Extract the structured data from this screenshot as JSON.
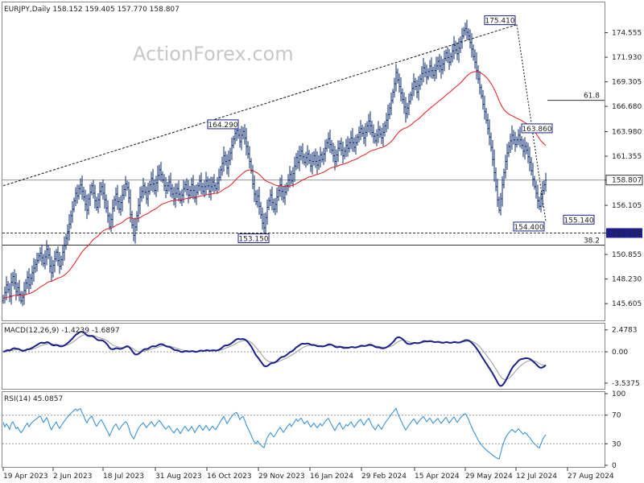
{
  "chart_data": {
    "type": "candlestick",
    "symbol_line": "EURJPY,Daily",
    "ohlc_readout": "158.152 159.405 157.770 158.807",
    "watermark": "ActionForex.com",
    "price_axis": {
      "ylim": [
        143.9,
        177.7
      ],
      "ticks": [
        "174.555",
        "171.930",
        "169.305",
        "166.680",
        "163.980",
        "161.355",
        "158.807",
        "156.105",
        "153.150",
        "150.855",
        "148.230",
        "145.605"
      ],
      "tick_values": [
        174.555,
        171.93,
        169.305,
        166.68,
        163.98,
        161.355,
        158.807,
        156.105,
        153.15,
        150.855,
        148.23,
        145.605
      ],
      "last_price": "158.807",
      "support_line_label": "153.150"
    },
    "x_axis": {
      "labels": [
        "19 Apr 2023",
        "2 Jun 2023",
        "18 Jul 2023",
        "31 Aug 2023",
        "16 Oct 2023",
        "29 Nov 2023",
        "16 Jan 2024",
        "29 Feb 2024",
        "15 Apr 2024",
        "29 May 2024",
        "12 Jul 2024",
        "27 Aug 2024"
      ],
      "bars": 360
    },
    "annotations": [
      {
        "text": "175.410",
        "bar": 319,
        "price": 175.41,
        "pos": "left"
      },
      {
        "text": "164.290",
        "bar": 147,
        "price": 164.29,
        "pos": "left"
      },
      {
        "text": "163.860",
        "bar": 342,
        "price": 163.86,
        "pos": "left"
      },
      {
        "text": "154.400",
        "bar": 337,
        "price": 154.4,
        "pos": "left"
      },
      {
        "text": "155.140",
        "bar": 368,
        "price": 155.14,
        "pos": "left"
      },
      {
        "text": "153.150",
        "bar": 166,
        "price": 153.15,
        "pos": "left"
      }
    ],
    "fib_levels": [
      {
        "text": "61.8",
        "price": 167.33
      },
      {
        "text": "38.2",
        "price": 151.86
      }
    ],
    "trendline": {
      "from": [
        0,
        158.2
      ],
      "to": [
        319,
        175.41
      ]
    },
    "horizontal_lines": [
      158.807,
      153.15,
      151.86,
      167.33
    ],
    "closes": [
      146.2,
      146.8,
      147.6,
      147.1,
      146.4,
      147.9,
      148.5,
      147.8,
      146.9,
      147.3,
      146.6,
      145.9,
      146.3,
      147.0,
      147.8,
      148.4,
      147.6,
      148.3,
      148.9,
      149.4,
      149.8,
      150.2,
      150.7,
      151.0,
      150.5,
      149.9,
      150.6,
      151.4,
      150.8,
      149.6,
      148.9,
      149.7,
      150.4,
      151.1,
      150.2,
      149.6,
      150.3,
      151.1,
      151.8,
      152.6,
      153.3,
      154.1,
      155.0,
      155.7,
      156.6,
      157.4,
      157.1,
      157.9,
      158.3,
      157.6,
      157.0,
      156.2,
      155.6,
      156.8,
      157.5,
      158.2,
      157.4,
      156.6,
      155.9,
      156.7,
      157.6,
      158.1,
      157.4,
      156.7,
      155.8,
      155.0,
      153.8,
      154.6,
      155.8,
      156.7,
      157.3,
      156.5,
      155.7,
      156.4,
      157.2,
      157.8,
      158.4,
      158.0,
      156.9,
      155.1,
      154.0,
      152.9,
      153.8,
      155.0,
      156.1,
      157.0,
      157.6,
      158.2,
      157.5,
      156.8,
      157.6,
      158.3,
      159.0,
      158.4,
      157.7,
      158.5,
      159.3,
      159.9,
      159.4,
      158.8,
      158.2,
      157.7,
      158.2,
      158.6,
      157.9,
      157.3,
      156.8,
      157.4,
      157.9,
      157.3,
      156.6,
      157.2,
      157.9,
      158.3,
      157.8,
      157.2,
      157.7,
      158.3,
      157.7,
      156.9,
      157.5,
      158.2,
      158.7,
      158.1,
      157.6,
      158.1,
      158.7,
      158.2,
      157.6,
      158.1,
      158.6,
      158.2,
      157.9,
      158.5,
      159.1,
      159.9,
      160.6,
      161.4,
      160.8,
      160.1,
      160.9,
      161.7,
      162.5,
      163.2,
      163.8,
      164.1,
      163.6,
      162.9,
      163.6,
      164.0,
      163.3,
      162.4,
      161.6,
      160.8,
      159.8,
      158.4,
      157.3,
      156.5,
      157.1,
      156.0,
      155.1,
      154.2,
      153.7,
      154.8,
      155.9,
      156.6,
      157.2,
      156.4,
      155.7,
      156.2,
      157.0,
      157.7,
      158.3,
      157.6,
      156.9,
      157.5,
      158.2,
      158.8,
      159.4,
      158.7,
      159.5,
      160.3,
      161.2,
      160.7,
      161.4,
      161.9,
      161.3,
      160.7,
      161.2,
      161.6,
      160.9,
      160.3,
      160.8,
      161.4,
      160.8,
      160.4,
      160.9,
      161.5,
      161.0,
      161.6,
      162.2,
      162.8,
      163.2,
      162.6,
      162.0,
      161.4,
      160.8,
      161.5,
      162.2,
      162.7,
      162.0,
      161.4,
      161.9,
      162.5,
      162.2,
      162.8,
      163.3,
      162.8,
      162.3,
      162.8,
      163.4,
      163.9,
      164.3,
      163.8,
      163.3,
      163.9,
      164.6,
      165.1,
      164.6,
      163.9,
      163.5,
      163.0,
      163.6,
      164.2,
      163.7,
      163.3,
      163.9,
      164.6,
      165.2,
      165.8,
      166.5,
      167.3,
      168.2,
      169.1,
      170.3,
      169.5,
      168.8,
      168.1,
      167.4,
      166.6,
      165.9,
      166.5,
      167.2,
      167.9,
      168.6,
      169.3,
      168.8,
      168.2,
      168.9,
      169.6,
      170.2,
      170.8,
      170.3,
      169.8,
      170.4,
      171.0,
      170.5,
      170.0,
      170.5,
      171.0,
      171.5,
      171.0,
      170.6,
      171.2,
      171.8,
      172.4,
      171.9,
      171.4,
      172.0,
      172.6,
      173.2,
      172.7,
      172.3,
      172.9,
      173.6,
      174.2,
      174.8,
      175.0,
      174.6,
      174.2,
      173.5,
      172.8,
      172.0,
      171.4,
      170.5,
      169.6,
      168.7,
      167.8,
      166.9,
      166.1,
      165.2,
      164.3,
      163.4,
      162.3,
      161.0,
      159.6,
      158.1,
      156.7,
      155.6,
      156.8,
      158.3,
      159.6,
      160.8,
      161.7,
      162.4,
      163.0,
      163.6,
      163.1,
      162.6,
      163.1,
      163.6,
      163.1,
      162.5,
      161.9,
      162.4,
      162.0,
      161.3,
      160.7,
      159.8,
      158.9,
      158.1,
      157.4,
      156.6,
      156.0,
      156.8,
      157.7,
      158.3,
      158.8
    ]
  },
  "macd_panel": {
    "title": "MACD(12,26,9) -1.4239 -1.6897",
    "ticks": [
      "2.4783",
      "0.00",
      "-3.5375"
    ],
    "tick_values": [
      2.4783,
      0.0,
      -3.5375
    ],
    "ylim": [
      -4.0,
      3.0
    ]
  },
  "rsi_panel": {
    "title": "RSI(14) 45.0857",
    "ticks": [
      "100",
      "70",
      "30",
      "0"
    ],
    "tick_values": [
      100,
      70,
      30,
      0
    ],
    "ylim": [
      0,
      100
    ]
  },
  "colors": {
    "candle": "#0a2a6e",
    "ma": "#e8191c",
    "macd": "#1a1f8c",
    "signal": "#9a9a9a",
    "rsi": "#2a8ad6",
    "grid": "#9a9a9a",
    "annotation_box": "#1a1f8c"
  }
}
